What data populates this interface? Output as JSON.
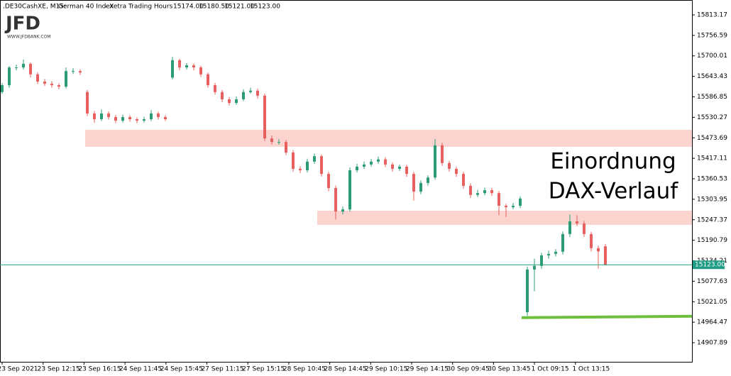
{
  "chart_data": {
    "type": "candlestick",
    "header": {
      "symbol": ".DE30CashXE, M15:",
      "name": "German 40 Index",
      "session": "- Xetra Trading Hours",
      "open": "15174.00",
      "high": "15180.50",
      "low": "15121.00",
      "close": "15123.00"
    },
    "logo": {
      "brand": "JFD",
      "url": "WWW.JFDBANK.COM"
    },
    "annotation": [
      "Einordnung",
      "DAX-Verlauf"
    ],
    "up_color": "#2c9c74",
    "down_color": "#e5605f",
    "ylim": [
      14855.05,
      15854.3
    ],
    "yticks": [
      15813.17,
      15756.59,
      15700.01,
      15643.43,
      15586.85,
      15530.27,
      15473.69,
      15417.11,
      15360.53,
      15303.95,
      15247.37,
      15190.79,
      15134.21,
      15077.63,
      15021.05,
      14964.47,
      14907.89
    ],
    "x_labels": [
      "23 Sep 2021",
      "23 Sep 12:15",
      "23 Sep 16:15",
      "24 Sep 11:45",
      "24 Sep 15:45",
      "27 Sep 11:15",
      "27 Sep 15:15",
      "28 Sep 10:45",
      "28 Sep 14:45",
      "29 Sep 10:15",
      "29 Sep 14:15",
      "30 Sep 09:45",
      "30 Sep 13:45",
      "1 Oct 09:15",
      "1 Oct 13:15"
    ],
    "last_price": {
      "value": 15123,
      "label": "15123.00"
    },
    "zones": [
      {
        "start": 11.7,
        "top": 15495.8,
        "bottom": 15448.8
      },
      {
        "start": 44.4,
        "top": 15272.5,
        "bottom": 15233.3
      }
    ],
    "support_line": {
      "start": 73.2,
      "from": 14977,
      "to": 14981
    },
    "candles": [
      [
        15600,
        15625,
        15595,
        15619
      ],
      [
        15619,
        15672,
        15612,
        15668
      ],
      [
        15668,
        15676,
        15660,
        15668
      ],
      [
        15668,
        15690,
        15662,
        15678
      ],
      [
        15678,
        15682,
        15640,
        15649
      ],
      [
        15649,
        15655,
        15622,
        15629
      ],
      [
        15629,
        15636,
        15617,
        15623
      ],
      [
        15623,
        15630,
        15612,
        15619
      ],
      [
        15619,
        15624,
        15608,
        15615
      ],
      [
        15615,
        15668,
        15610,
        15658
      ],
      [
        15658,
        15666,
        15650,
        15658
      ],
      [
        15658,
        15663,
        15647,
        15654
      ],
      [
        15600,
        15606,
        15534,
        15541
      ],
      [
        15541,
        15548,
        15515,
        15525
      ],
      [
        15525,
        15552,
        15520,
        15541
      ],
      [
        15541,
        15547,
        15524,
        15531
      ],
      [
        15531,
        15537,
        15514,
        15521
      ],
      [
        15521,
        15538,
        15516,
        15531
      ],
      [
        15531,
        15536,
        15518,
        15525
      ],
      [
        15525,
        15530,
        15514,
        15521
      ],
      [
        15521,
        15532,
        15516,
        15525
      ],
      [
        15525,
        15550,
        15520,
        15541
      ],
      [
        15541,
        15546,
        15524,
        15531
      ],
      [
        15531,
        15536,
        15520,
        15525
      ],
      [
        15640,
        15697,
        15635,
        15688
      ],
      [
        15688,
        15692,
        15660,
        15668
      ],
      [
        15668,
        15680,
        15662,
        15674
      ],
      [
        15674,
        15679,
        15660,
        15668
      ],
      [
        15668,
        15673,
        15642,
        15649
      ],
      [
        15649,
        15654,
        15612,
        15619
      ],
      [
        15619,
        15625,
        15593,
        15600
      ],
      [
        15600,
        15606,
        15572,
        15580
      ],
      [
        15580,
        15586,
        15563,
        15570
      ],
      [
        15570,
        15588,
        15565,
        15580
      ],
      [
        15580,
        15608,
        15575,
        15600
      ],
      [
        15600,
        15612,
        15596,
        15604
      ],
      [
        15604,
        15610,
        15582,
        15590
      ],
      [
        15590,
        15596,
        15465,
        15472
      ],
      [
        15472,
        15480,
        15455,
        15462
      ],
      [
        15462,
        15470,
        15455,
        15462
      ],
      [
        15462,
        15468,
        15426,
        15433
      ],
      [
        15433,
        15440,
        15380,
        15388
      ],
      [
        15388,
        15395,
        15376,
        15384
      ],
      [
        15384,
        15416,
        15378,
        15408
      ],
      [
        15408,
        15430,
        15402,
        15423
      ],
      [
        15423,
        15428,
        15367,
        15374
      ],
      [
        15374,
        15380,
        15326,
        15335
      ],
      [
        15335,
        15342,
        15248,
        15270
      ],
      [
        15270,
        15284,
        15262,
        15276
      ],
      [
        15276,
        15392,
        15270,
        15384
      ],
      [
        15384,
        15402,
        15378,
        15394
      ],
      [
        15394,
        15408,
        15388,
        15400
      ],
      [
        15400,
        15415,
        15394,
        15408
      ],
      [
        15408,
        15422,
        15402,
        15414
      ],
      [
        15414,
        15420,
        15393,
        15400
      ],
      [
        15400,
        15406,
        15380,
        15388
      ],
      [
        15388,
        15400,
        15382,
        15394
      ],
      [
        15394,
        15399,
        15366,
        15374
      ],
      [
        15374,
        15380,
        15300,
        15325
      ],
      [
        15325,
        15356,
        15318,
        15349
      ],
      [
        15349,
        15370,
        15342,
        15364
      ],
      [
        15364,
        15470,
        15358,
        15453
      ],
      [
        15453,
        15460,
        15396,
        15404
      ],
      [
        15404,
        15410,
        15380,
        15388
      ],
      [
        15388,
        15394,
        15366,
        15374
      ],
      [
        15374,
        15380,
        15333,
        15341
      ],
      [
        15341,
        15348,
        15308,
        15316
      ],
      [
        15316,
        15330,
        15310,
        15321
      ],
      [
        15321,
        15336,
        15315,
        15329
      ],
      [
        15329,
        15335,
        15313,
        15321
      ],
      [
        15321,
        15327,
        15260,
        15286
      ],
      [
        15286,
        15292,
        15255,
        15282
      ],
      [
        15282,
        15294,
        15276,
        15286
      ],
      [
        15286,
        15312,
        15280,
        15306
      ],
      [
        14992,
        15118,
        14982,
        15110
      ],
      [
        15110,
        15140,
        15050,
        15120
      ],
      [
        15120,
        15156,
        15112,
        15149
      ],
      [
        15149,
        15162,
        15140,
        15153
      ],
      [
        15153,
        15166,
        15146,
        15159
      ],
      [
        15159,
        15215,
        15152,
        15208
      ],
      [
        15208,
        15262,
        15200,
        15243
      ],
      [
        15243,
        15260,
        15230,
        15237
      ],
      [
        15237,
        15244,
        15200,
        15208
      ],
      [
        15208,
        15214,
        15160,
        15169
      ],
      [
        15169,
        15176,
        15112,
        15160
      ],
      [
        15174,
        15180.5,
        15121,
        15123
      ]
    ]
  }
}
